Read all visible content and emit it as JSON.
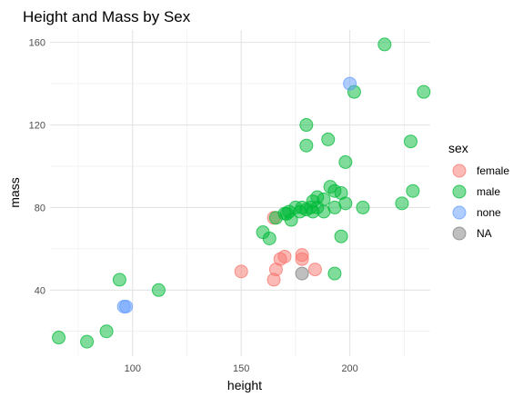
{
  "chart_data": {
    "type": "scatter",
    "title": "Height and Mass by Sex",
    "xlabel": "height",
    "ylabel": "mass",
    "xlim": [
      62,
      237
    ],
    "ylim": [
      8,
      166
    ],
    "x_ticks": [
      100,
      150,
      200
    ],
    "y_ticks": [
      40,
      80,
      120,
      160
    ],
    "grid": true,
    "point_alpha": 0.5,
    "legend": {
      "title": "sex",
      "position": "right"
    },
    "series": [
      {
        "name": "female",
        "color": "#F8766D",
        "points": [
          [
            150,
            49
          ],
          [
            165,
            45
          ],
          [
            166,
            50
          ],
          [
            168,
            55
          ],
          [
            170,
            56.2
          ],
          [
            178,
            55
          ],
          [
            178,
            57
          ],
          [
            184,
            50
          ],
          [
            165,
            75
          ]
        ]
      },
      {
        "name": "male",
        "color": "#00BA38",
        "points": [
          [
            66,
            17
          ],
          [
            79,
            15
          ],
          [
            88,
            20
          ],
          [
            94,
            45
          ],
          [
            112,
            40
          ],
          [
            160,
            68
          ],
          [
            163,
            65
          ],
          [
            166,
            75
          ],
          [
            170,
            77
          ],
          [
            171,
            77
          ],
          [
            172,
            78
          ],
          [
            173,
            74
          ],
          [
            175,
            80
          ],
          [
            177,
            78
          ],
          [
            178,
            80
          ],
          [
            180,
            79
          ],
          [
            180,
            110
          ],
          [
            180,
            120
          ],
          [
            182,
            80
          ],
          [
            183,
            83
          ],
          [
            183,
            78
          ],
          [
            185,
            85
          ],
          [
            185,
            80
          ],
          [
            188,
            84
          ],
          [
            188,
            78
          ],
          [
            190,
            113
          ],
          [
            191,
            90
          ],
          [
            193,
            88
          ],
          [
            193,
            48
          ],
          [
            193,
            80
          ],
          [
            196,
            66
          ],
          [
            196,
            87
          ],
          [
            198,
            102
          ],
          [
            198,
            82
          ],
          [
            202,
            136
          ],
          [
            206,
            80
          ],
          [
            216,
            159
          ],
          [
            224,
            82
          ],
          [
            228,
            112
          ],
          [
            229,
            88
          ],
          [
            234,
            136
          ]
        ]
      },
      {
        "name": "none",
        "color": "#619CFF",
        "points": [
          [
            96,
            32
          ],
          [
            97,
            32
          ],
          [
            200,
            140
          ]
        ]
      },
      {
        "name": "NA",
        "color": "#7F7F7F",
        "points": [
          [
            178,
            48
          ]
        ]
      }
    ]
  }
}
